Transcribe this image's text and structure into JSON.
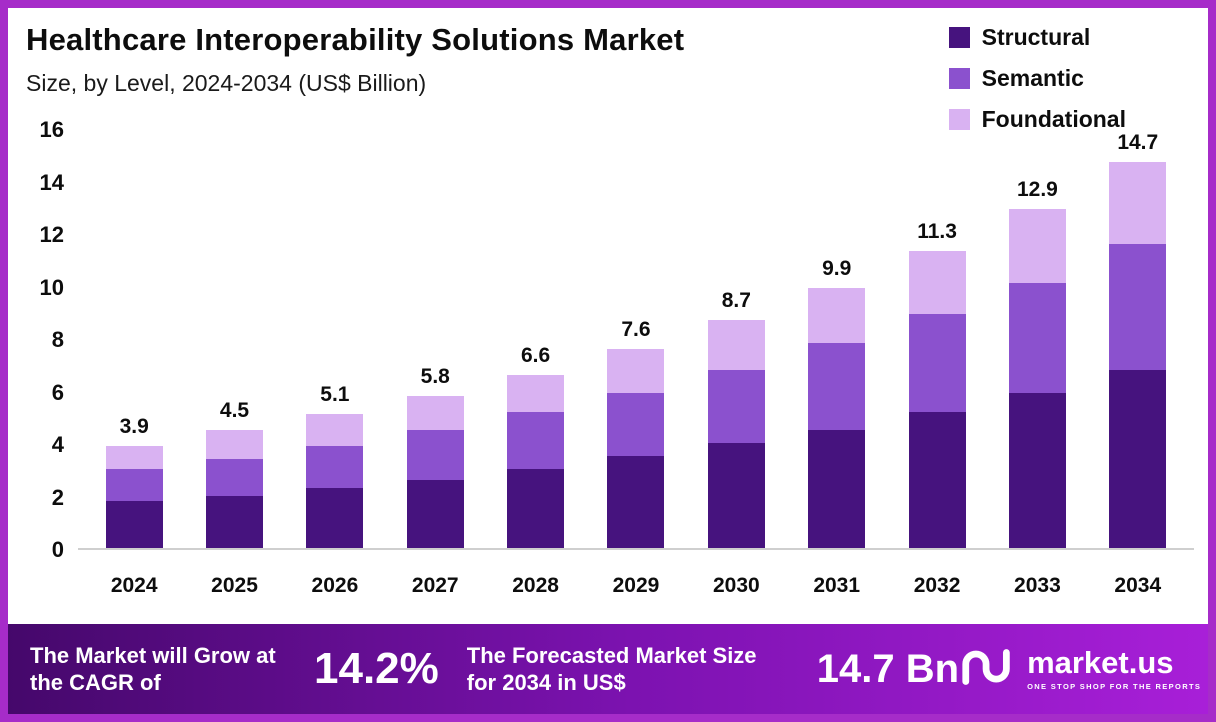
{
  "chart_data": {
    "type": "bar",
    "stacked": true,
    "title": "Healthcare Interoperability Solutions Market",
    "subtitle": "Size, by Level, 2024-2034 (US$ Billion)",
    "unit": "US$ Billion",
    "categories": [
      "2024",
      "2025",
      "2026",
      "2027",
      "2028",
      "2029",
      "2030",
      "2031",
      "2032",
      "2033",
      "2034"
    ],
    "series": [
      {
        "name": "Structural",
        "color": "#46137e",
        "values": [
          1.8,
          2.0,
          2.3,
          2.6,
          3.0,
          3.5,
          4.0,
          4.5,
          5.2,
          5.9,
          6.8
        ]
      },
      {
        "name": "Semantic",
        "color": "#8b51ce",
        "values": [
          1.2,
          1.4,
          1.6,
          1.9,
          2.2,
          2.4,
          2.8,
          3.3,
          3.7,
          4.2,
          4.8
        ]
      },
      {
        "name": "Foundational",
        "color": "#d9b2f2",
        "values": [
          0.9,
          1.1,
          1.2,
          1.3,
          1.4,
          1.7,
          1.9,
          2.1,
          2.4,
          2.8,
          3.1
        ]
      }
    ],
    "totals": [
      3.9,
      4.5,
      5.1,
      5.8,
      6.6,
      7.6,
      8.7,
      9.9,
      11.3,
      12.9,
      14.7
    ],
    "ylim": [
      0,
      16
    ],
    "yticks": [
      0,
      2,
      4,
      6,
      8,
      10,
      12,
      14,
      16
    ],
    "legend_position": "top-right",
    "grid": false
  },
  "banner": {
    "cagr_label": "The Market will Grow at the CAGR of",
    "cagr_value": "14.2%",
    "forecast_label": "The Forecasted Market Size for 2034 in US$",
    "forecast_value": "14.7 Bn",
    "brand_name": "market.us",
    "brand_tagline": "ONE STOP SHOP FOR THE REPORTS"
  },
  "colors": {
    "frame_border": "#a62cc9",
    "banner_gradient_start": "#45086b",
    "banner_gradient_mid": "#7c12b0",
    "banner_gradient_end": "#a81fd8",
    "axis_line": "#cfcfcf",
    "text": "#0d0d0d"
  }
}
